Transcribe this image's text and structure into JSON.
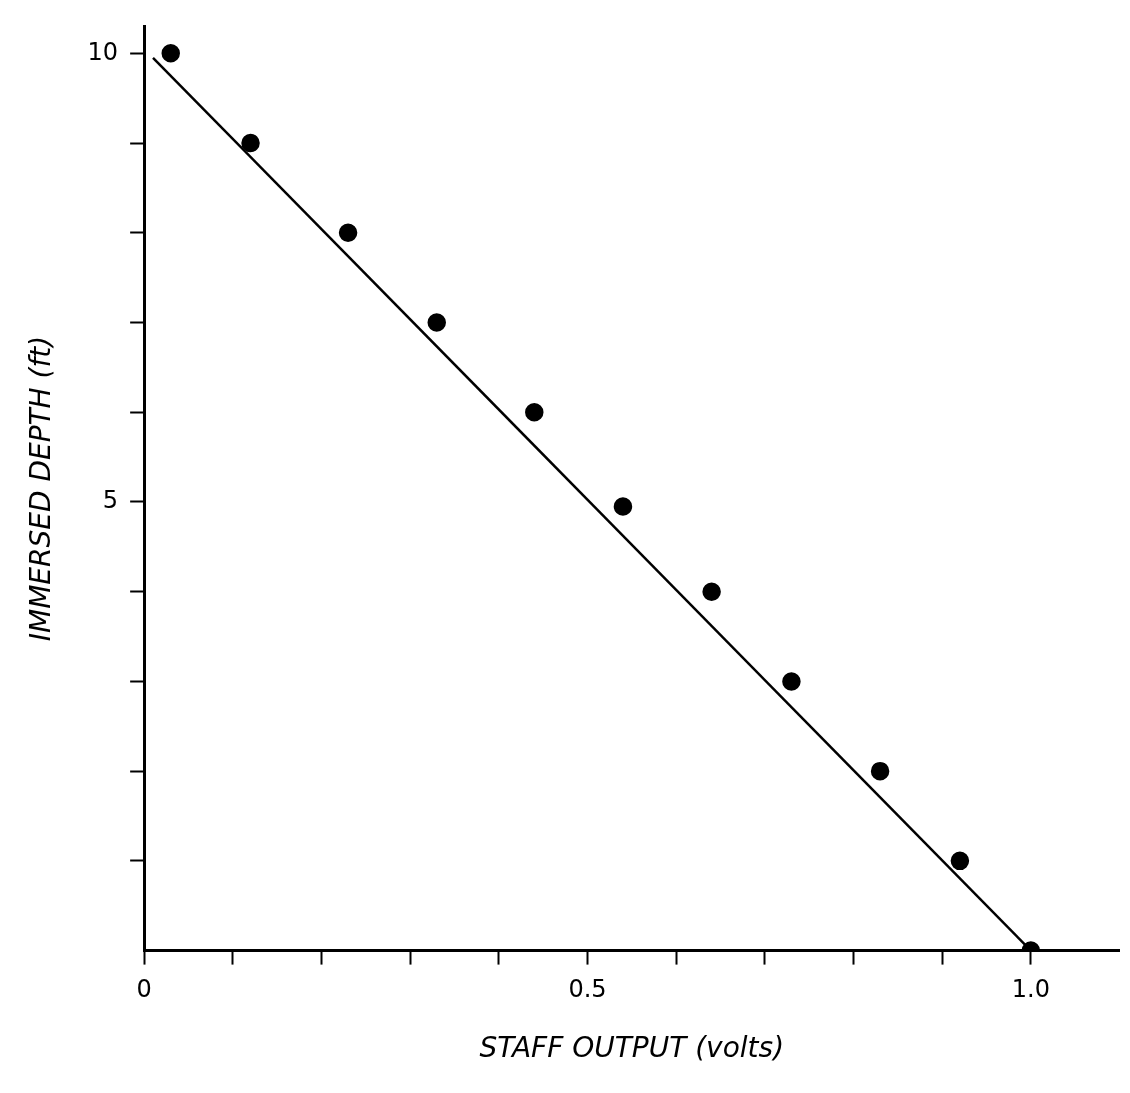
{
  "chart_data": {
    "type": "scatter",
    "xlabel": "STAFF OUTPUT (volts)",
    "ylabel": "IMMERSED DEPTH (ft)",
    "series": [
      {
        "type": "scatter",
        "color": "#000000",
        "marker": "circle",
        "x": [
          0.03,
          0.12,
          0.23,
          0.33,
          0.44,
          0.54,
          0.64,
          0.73,
          0.83,
          0.92,
          1.0
        ],
        "values": [
          10,
          9,
          8,
          7,
          6,
          4.95,
          4,
          3,
          2,
          1,
          0
        ]
      },
      {
        "type": "line",
        "color": "#000000",
        "marker": "none",
        "x": [
          0.01,
          1.0
        ],
        "values": [
          9.95,
          0
        ]
      }
    ],
    "xlim": [
      0,
      1.1
    ],
    "ylim": [
      0,
      10.3
    ],
    "xticks": [
      {
        "value": 0,
        "label": "0"
      },
      {
        "value": 0.1,
        "label": null
      },
      {
        "value": 0.2,
        "label": null
      },
      {
        "value": 0.3,
        "label": null
      },
      {
        "value": 0.4,
        "label": null
      },
      {
        "value": 0.5,
        "label": "0.5"
      },
      {
        "value": 0.6,
        "label": null
      },
      {
        "value": 0.7,
        "label": null
      },
      {
        "value": 0.8,
        "label": null
      },
      {
        "value": 0.9,
        "label": null
      },
      {
        "value": 1,
        "label": "1.0"
      }
    ],
    "yticks": [
      {
        "value": 1,
        "label": null
      },
      {
        "value": 2,
        "label": null
      },
      {
        "value": 3,
        "label": null
      },
      {
        "value": 4,
        "label": null
      },
      {
        "value": 5,
        "label": "5"
      },
      {
        "value": 6,
        "label": null
      },
      {
        "value": 7,
        "label": null
      },
      {
        "value": 8,
        "label": null
      },
      {
        "value": 9,
        "label": null
      },
      {
        "value": 10,
        "label": "10"
      }
    ],
    "grid": false,
    "legend": false
  }
}
